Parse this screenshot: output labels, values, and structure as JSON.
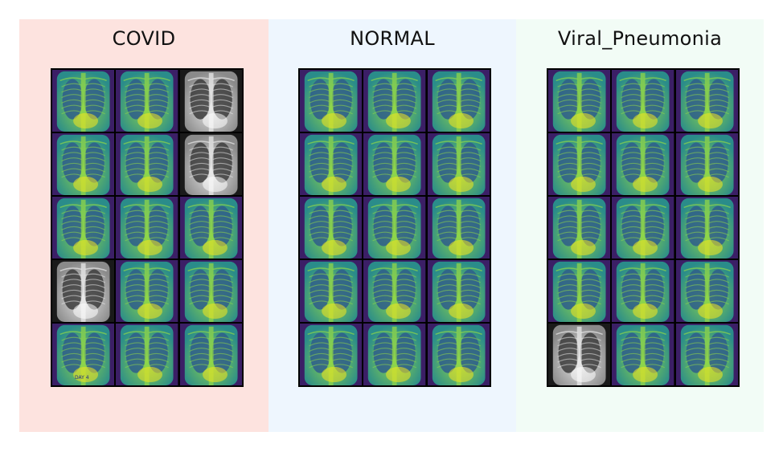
{
  "colors": {
    "panel_covid_bg": "#fde3df",
    "panel_normal_bg": "#eef6fe",
    "panel_viral_bg": "#f2fcf6",
    "viridis_dark": "#3b1f66",
    "viridis_mid": "#2a8c8a",
    "viridis_bright": "#8fd64a",
    "viridis_yellow": "#f4e51f"
  },
  "panels": [
    {
      "title": "COVID",
      "tiles": [
        "viridis",
        "viridis",
        "gray",
        "viridis",
        "viridis",
        "gray",
        "viridis",
        "viridis",
        "viridis",
        "gray",
        "viridis",
        "viridis",
        "viridis",
        "viridis",
        "viridis"
      ],
      "tile_overlay_text": "DAY 4"
    },
    {
      "title": "NORMAL",
      "tiles": [
        "viridis",
        "viridis",
        "viridis",
        "viridis",
        "viridis",
        "viridis",
        "viridis",
        "viridis",
        "viridis",
        "viridis",
        "viridis",
        "viridis",
        "viridis",
        "viridis",
        "viridis"
      ]
    },
    {
      "title": "Viral_Pneumonia",
      "tiles": [
        "viridis",
        "viridis",
        "viridis",
        "viridis",
        "viridis",
        "viridis",
        "viridis",
        "viridis",
        "viridis",
        "viridis",
        "viridis",
        "viridis",
        "gray",
        "viridis",
        "viridis"
      ]
    }
  ]
}
